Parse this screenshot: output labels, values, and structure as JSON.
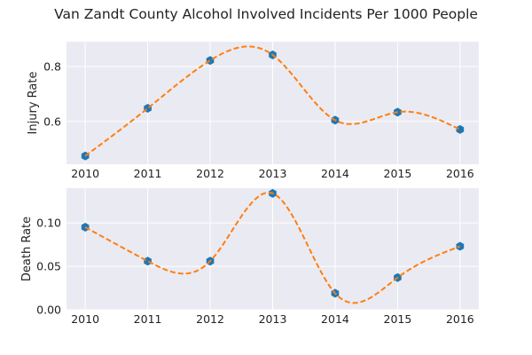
{
  "page": {
    "title": "Van Zandt County Alcohol Involved Incidents Per 1000 People"
  },
  "chart_data": [
    {
      "type": "line",
      "x": [
        2010,
        2011,
        2012,
        2013,
        2014,
        2015,
        2016
      ],
      "x_tick_labels": [
        "2010",
        "2011",
        "2012",
        "2013",
        "2014",
        "2015",
        "2016"
      ],
      "series": [
        {
          "values": [
            0.475,
            0.648,
            0.822,
            0.842,
            0.605,
            0.634,
            0.571
          ]
        }
      ],
      "ylabel": "Injury Rate",
      "ylim": [
        0.445,
        0.89
      ],
      "y_ticks": [
        0.6,
        0.8
      ],
      "y_tick_labels": [
        "0.6",
        "0.8"
      ],
      "xlim": [
        2009.7,
        2016.3
      ],
      "grid": true,
      "colors": {
        "marker": "#1f77b4",
        "curve": "#ff7f0e"
      }
    },
    {
      "type": "line",
      "x": [
        2010,
        2011,
        2012,
        2013,
        2014,
        2015,
        2016
      ],
      "x_tick_labels": [
        "2010",
        "2011",
        "2012",
        "2013",
        "2014",
        "2015",
        "2016"
      ],
      "series": [
        {
          "values": [
            0.095,
            0.056,
            0.056,
            0.134,
            0.019,
            0.037,
            0.073
          ]
        }
      ],
      "ylabel": "Death Rate",
      "ylim": [
        0.0,
        0.14
      ],
      "y_ticks": [
        0.0,
        0.05,
        0.1
      ],
      "y_tick_labels": [
        "0.00",
        "0.05",
        "0.10"
      ],
      "xlim": [
        2009.7,
        2016.3
      ],
      "grid": true,
      "colors": {
        "marker": "#1f77b4",
        "curve": "#ff7f0e"
      }
    }
  ],
  "style": {
    "panel_bg": "#eaeaf2",
    "grid": "#ffffff"
  }
}
